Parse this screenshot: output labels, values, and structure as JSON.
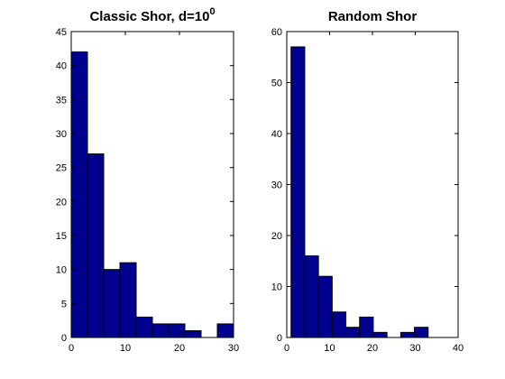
{
  "chart_data": [
    {
      "type": "histogram",
      "title": "Classic Shor, d=10",
      "title_superscript": "0",
      "bins": [
        0,
        3,
        6,
        9,
        12,
        15,
        18,
        21,
        24,
        27,
        30
      ],
      "values": [
        42,
        27,
        10,
        11,
        3,
        2,
        2,
        1,
        0,
        2
      ],
      "color": "#00008f",
      "xlim": [
        0,
        30
      ],
      "xticks": [
        0,
        10,
        20,
        30
      ],
      "ylim": [
        0,
        45
      ],
      "yticks": [
        0,
        5,
        10,
        15,
        20,
        25,
        30,
        35,
        40,
        45
      ]
    },
    {
      "type": "histogram",
      "title": "Random Shor",
      "bins": [
        1,
        4.2,
        7.4,
        10.6,
        13.8,
        17,
        20.2,
        23.4,
        26.6,
        29.8,
        33
      ],
      "values": [
        57,
        16,
        12,
        5,
        2,
        4,
        1,
        0,
        1,
        2
      ],
      "color": "#00008f",
      "xlim": [
        0,
        40
      ],
      "xticks": [
        0,
        10,
        20,
        30,
        40
      ],
      "ylim": [
        0,
        60
      ],
      "yticks": [
        0,
        10,
        20,
        30,
        40,
        50,
        60
      ]
    }
  ]
}
